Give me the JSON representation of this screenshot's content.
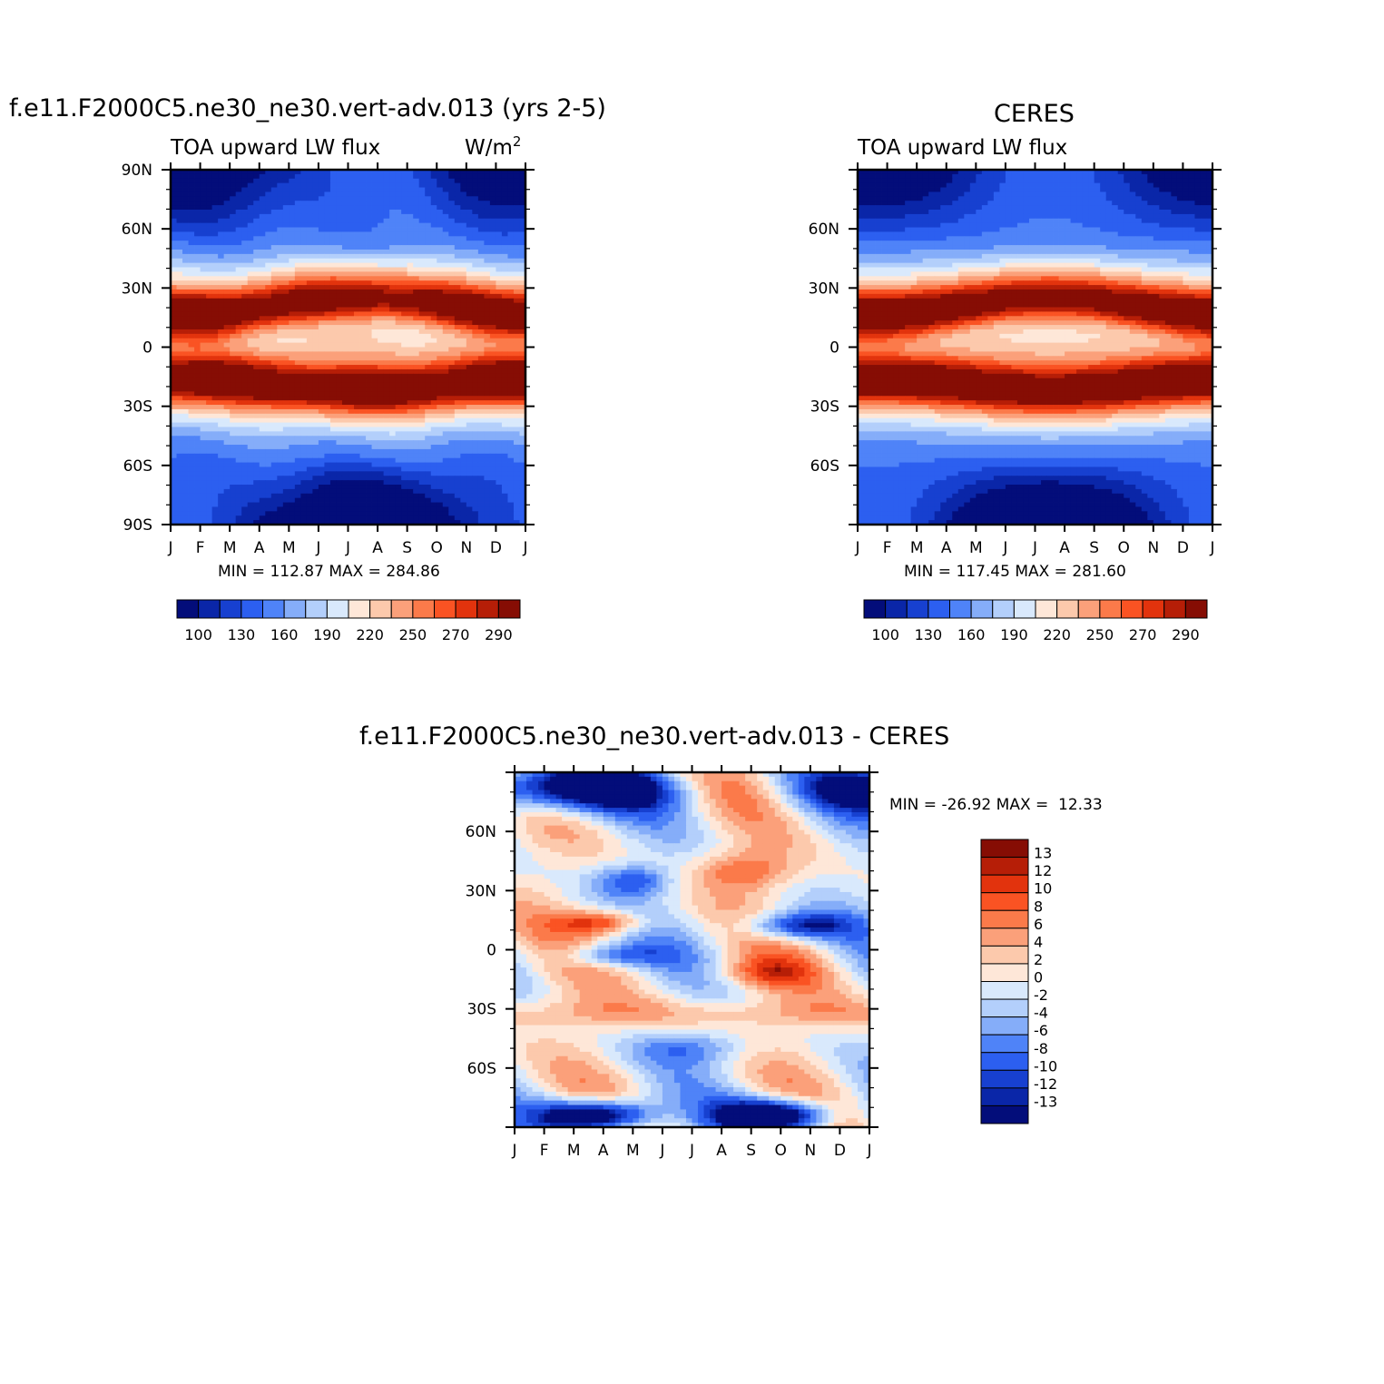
{
  "figure": {
    "panels": [
      {
        "id": "model",
        "main_title": "f.e11.F2000C5.ne30_ne30.vert-adv.013 (yrs 2-5)",
        "left_title": "TOA upward LW flux",
        "right_title": "W/m",
        "right_title_sup": "2",
        "stats": "MIN = 112.87 MAX = 284.86",
        "colorbar_labels": [
          "100",
          "130",
          "160",
          "190",
          "220",
          "250",
          "270",
          "290"
        ]
      },
      {
        "id": "obs",
        "main_title": "CERES",
        "left_title": "TOA upward LW flux",
        "stats": "MIN = 117.45 MAX = 281.60",
        "colorbar_labels": [
          "100",
          "130",
          "160",
          "190",
          "220",
          "250",
          "270",
          "290"
        ]
      },
      {
        "id": "diff",
        "main_title": "f.e11.F2000C5.ne30_ne30.vert-adv.013 - CERES",
        "stats": "MIN = -26.92 MAX =  12.33",
        "colorbar_labels": [
          "13",
          "12",
          "10",
          "8",
          "6",
          "4",
          "2",
          "0",
          "-2",
          "-4",
          "-6",
          "-8",
          "-10",
          "-12",
          "-13"
        ]
      }
    ]
  },
  "chart_data": [
    {
      "type": "heatmap",
      "title": "f.e11.F2000C5.ne30_ne30.vert-adv.013 (yrs 2-5)",
      "subtitle": "TOA upward LW flux",
      "units": "W/m2",
      "x_ticks": [
        "J",
        "F",
        "M",
        "A",
        "M",
        "J",
        "J",
        "A",
        "S",
        "O",
        "N",
        "D",
        "J"
      ],
      "y_ticks": [
        "90N",
        "60N",
        "30N",
        "0",
        "30S",
        "60S",
        "90S"
      ],
      "x_domain": [
        0,
        12
      ],
      "y_domain": [
        -90,
        90
      ],
      "min": 112.87,
      "max": 284.86,
      "levels": [
        100,
        115,
        130,
        145,
        160,
        175,
        190,
        205,
        220,
        235,
        250,
        260,
        270,
        280,
        290
      ],
      "colors": [
        "#030d7a",
        "#0a26a8",
        "#1740d0",
        "#2c5ff0",
        "#4f83f8",
        "#85adf9",
        "#b3cffb",
        "#d9e9fc",
        "#fee7d8",
        "#fcc9ac",
        "#fba07a",
        "#fb7a4a",
        "#fa5323",
        "#e2330d",
        "#b61e07",
        "#860d04"
      ],
      "description_values": {
        "months": [
          "Jan",
          "Feb",
          "Mar",
          "Apr",
          "May",
          "Jun",
          "Jul",
          "Aug",
          "Sep",
          "Oct",
          "Nov",
          "Dec"
        ],
        "max_latitude_band_nh": "20N in boreal winter (~275)",
        "max_latitude_band_sh": "20S in austral winter (~280)",
        "antarctic_winter_min": "~115"
      }
    },
    {
      "type": "heatmap",
      "title": "CERES",
      "subtitle": "TOA upward LW flux",
      "x_ticks": [
        "J",
        "F",
        "M",
        "A",
        "M",
        "J",
        "J",
        "A",
        "S",
        "O",
        "N",
        "D",
        "J"
      ],
      "y_ticks": [
        "60N",
        "30N",
        "0",
        "30S",
        "60S"
      ],
      "x_domain": [
        0,
        12
      ],
      "y_domain": [
        -90,
        90
      ],
      "min": 117.45,
      "max": 281.6,
      "levels": [
        100,
        115,
        130,
        145,
        160,
        175,
        190,
        205,
        220,
        235,
        250,
        260,
        270,
        280,
        290
      ],
      "colors": [
        "#030d7a",
        "#0a26a8",
        "#1740d0",
        "#2c5ff0",
        "#4f83f8",
        "#85adf9",
        "#b3cffb",
        "#d9e9fc",
        "#fee7d8",
        "#fcc9ac",
        "#fba07a",
        "#fb7a4a",
        "#fa5323",
        "#e2330d",
        "#b61e07",
        "#860d04"
      ]
    },
    {
      "type": "heatmap",
      "title": "f.e11.F2000C5.ne30_ne30.vert-adv.013 - CERES",
      "x_ticks": [
        "J",
        "F",
        "M",
        "A",
        "M",
        "J",
        "J",
        "A",
        "S",
        "O",
        "N",
        "D",
        "J"
      ],
      "y_ticks": [
        "60N",
        "30N",
        "0",
        "30S",
        "60S"
      ],
      "x_domain": [
        0,
        12
      ],
      "y_domain": [
        -90,
        90
      ],
      "min": -26.92,
      "max": 12.33,
      "levels": [
        -13,
        -12,
        -10,
        -8,
        -6,
        -4,
        -2,
        0,
        2,
        4,
        6,
        8,
        10,
        12,
        13
      ],
      "colors": [
        "#030d7a",
        "#0a26a8",
        "#1740d0",
        "#2c5ff0",
        "#4f83f8",
        "#85adf9",
        "#b3cffb",
        "#d9e9fc",
        "#fee7d8",
        "#fcc9ac",
        "#fba07a",
        "#fb7a4a",
        "#fa5323",
        "#e2330d",
        "#b61e07",
        "#860d04"
      ]
    }
  ]
}
